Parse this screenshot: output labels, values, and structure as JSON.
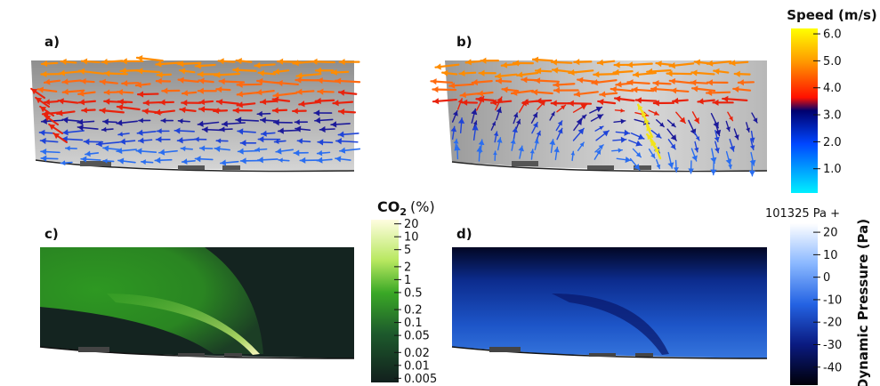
{
  "panels": {
    "a": {
      "label": "a)"
    },
    "b": {
      "label": "b)"
    },
    "c": {
      "label": "c)"
    },
    "d": {
      "label": "d)"
    }
  },
  "colorbars": {
    "speed": {
      "title": "Speed (m/s)",
      "ticks": [
        "6.0",
        "5.0",
        "4.0",
        "3.0",
        "2.0",
        "1.0"
      ],
      "tick_values": [
        6,
        5,
        4,
        3,
        2,
        1
      ],
      "range": [
        0.1,
        6.2
      ],
      "colors": [
        "#ffff00",
        "#ff9a00",
        "#ff0000",
        "#00008b",
        "#0050ff",
        "#00e8ff"
      ]
    },
    "co2": {
      "title_main": "CO",
      "title_sub": "2",
      "title_unit": "(%)",
      "ticks": [
        "20",
        "10",
        "5",
        "2",
        "1",
        "0.5",
        "0.2",
        "0.1",
        "0.05",
        "0.02",
        "0.01",
        "0.005"
      ],
      "tick_values": [
        20,
        10,
        5,
        2,
        1,
        0.5,
        0.2,
        0.1,
        0.05,
        0.02,
        0.01,
        0.005
      ],
      "range": [
        0.004,
        25
      ],
      "colors": [
        "#fffbd4",
        "#b5e65a",
        "#34a020",
        "#1c5a2a",
        "#122420"
      ]
    },
    "pressure": {
      "offset_label": "101325 Pa +",
      "title": "Dynamic Pressure (Pa)",
      "ticks": [
        "20",
        "10",
        "0",
        "-10",
        "-20",
        "-30",
        "-40"
      ],
      "tick_values": [
        20,
        10,
        0,
        -10,
        -20,
        -30,
        -40
      ],
      "range": [
        -48,
        24
      ],
      "colors": [
        "#ffffff",
        "#7fb4ff",
        "#1f5fe0",
        "#0a1c8a",
        "#000010"
      ]
    }
  }
}
